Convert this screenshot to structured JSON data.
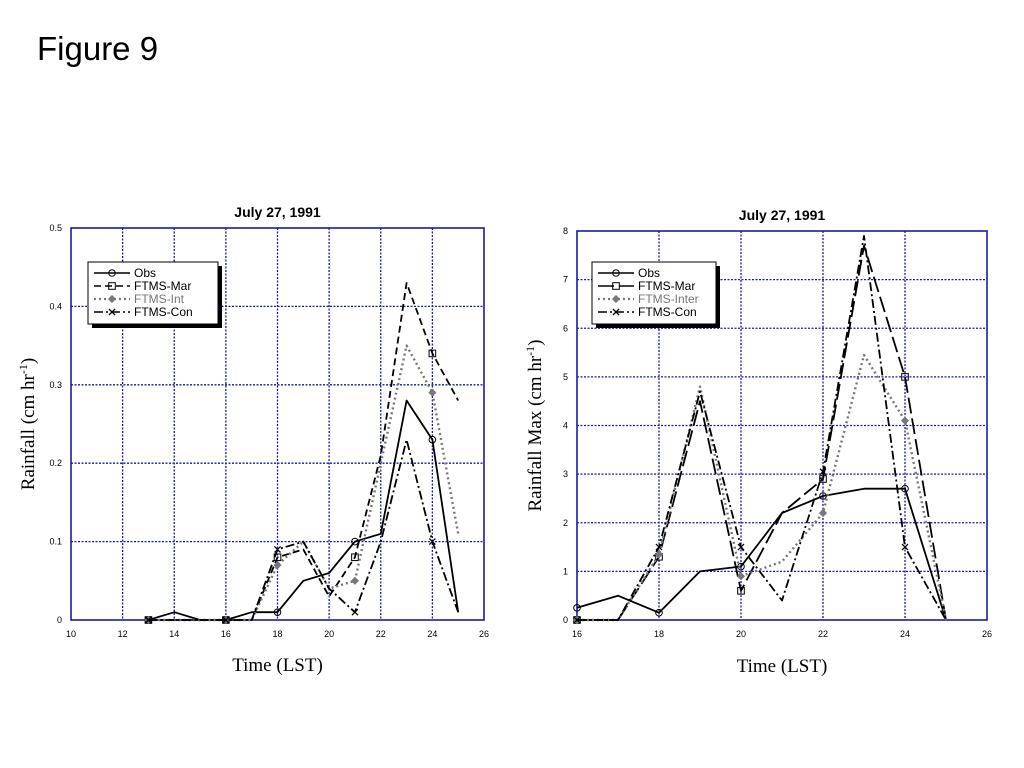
{
  "page": {
    "title": "Figure 9"
  },
  "chart_data": [
    {
      "type": "line",
      "title": "July 27, 1991",
      "xlabel": "Time (LST)",
      "ylabel": "Rainfall (cm hr",
      "ylabel_sup": "-1",
      "ylabel_end": ")",
      "xlim": [
        10,
        26
      ],
      "ylim": [
        0,
        0.5
      ],
      "xticks": [
        10,
        12,
        14,
        16,
        18,
        20,
        22,
        24,
        26
      ],
      "yticks": [
        0,
        0.1,
        0.2,
        0.3,
        0.4,
        0.5
      ],
      "grid": true,
      "legend_position": "top-left",
      "series": [
        {
          "name": "Obs",
          "color": "#000000",
          "style": "solid",
          "marker": "circle",
          "x": [
            13,
            14,
            15,
            16,
            17,
            18,
            19,
            20,
            21,
            22,
            23,
            24,
            25
          ],
          "y": [
            0,
            0.01,
            0,
            0,
            0.01,
            0.01,
            0.05,
            0.06,
            0.1,
            0.11,
            0.28,
            0.23,
            0.01
          ],
          "marker_x": [
            13,
            16,
            18,
            21,
            24
          ]
        },
        {
          "name": "FTMS-Mar",
          "color": "#000000",
          "style": "dash",
          "marker": "square",
          "x": [
            13,
            16,
            17,
            18,
            19,
            20,
            21,
            22,
            23,
            24,
            25
          ],
          "y": [
            0,
            0,
            0,
            0.08,
            0.09,
            0.03,
            0.08,
            0.21,
            0.43,
            0.34,
            0.28
          ],
          "marker_x": [
            13,
            16,
            18,
            21,
            24
          ]
        },
        {
          "name": "FTMS-Int",
          "color": "#777777",
          "style": "dot",
          "marker": "diamond",
          "x": [
            13,
            16,
            17,
            18,
            19,
            20,
            21,
            22,
            23,
            24,
            25
          ],
          "y": [
            0,
            0,
            0,
            0.07,
            0.1,
            0.04,
            0.05,
            0.2,
            0.35,
            0.29,
            0.11
          ],
          "marker_x": [
            13,
            16,
            18,
            21,
            24
          ]
        },
        {
          "name": "FTMS-Con",
          "color": "#000000",
          "style": "dashdot",
          "marker": "x",
          "x": [
            13,
            16,
            17,
            18,
            19,
            20,
            21,
            22,
            23,
            24,
            25
          ],
          "y": [
            0,
            0,
            0,
            0.09,
            0.1,
            0.04,
            0.01,
            0.1,
            0.23,
            0.1,
            0.01
          ],
          "marker_x": [
            13,
            16,
            18,
            21,
            24
          ]
        }
      ]
    },
    {
      "type": "line",
      "title": "July 27, 1991",
      "xlabel": "Time (LST)",
      "ylabel": "Rainfall Max (cm hr",
      "ylabel_sup": "-1",
      "ylabel_end": ")",
      "xlim": [
        16,
        26
      ],
      "ylim": [
        0,
        8
      ],
      "xticks": [
        16,
        18,
        20,
        22,
        24,
        26
      ],
      "yticks": [
        0,
        1,
        2,
        3,
        4,
        5,
        6,
        7,
        8
      ],
      "grid": true,
      "legend_position": "top-left",
      "series": [
        {
          "name": "Obs",
          "color": "#000000",
          "style": "solid",
          "marker": "circle",
          "x": [
            16,
            17,
            18,
            19,
            20,
            21,
            22,
            23,
            24,
            25
          ],
          "y": [
            0.25,
            0.5,
            0.15,
            1.0,
            1.1,
            2.2,
            2.55,
            2.7,
            2.7,
            0
          ],
          "marker_x": [
            16,
            18,
            20,
            22,
            24
          ]
        },
        {
          "name": "FTMS-Mar",
          "color": "#000000",
          "style": "longdash",
          "marker": "square",
          "x": [
            16,
            17,
            18,
            19,
            20,
            21,
            22,
            23,
            24,
            25
          ],
          "y": [
            0,
            0,
            1.3,
            4.5,
            0.6,
            2.2,
            2.9,
            7.7,
            5.0,
            0
          ],
          "marker_x": [
            16,
            18,
            20,
            22,
            24
          ]
        },
        {
          "name": "FTMS-Inter",
          "color": "#777777",
          "style": "dot",
          "marker": "diamond",
          "x": [
            16,
            17,
            18,
            19,
            20,
            21,
            22,
            23,
            24,
            25
          ],
          "y": [
            0,
            0,
            1.35,
            4.8,
            0.9,
            1.2,
            2.2,
            5.45,
            4.1,
            0
          ],
          "marker_x": [
            16,
            18,
            20,
            22,
            24
          ]
        },
        {
          "name": "FTMS-Con",
          "color": "#000000",
          "style": "dashdot",
          "marker": "x",
          "x": [
            16,
            17,
            18,
            19,
            20,
            21,
            22,
            23,
            24,
            25
          ],
          "y": [
            0,
            0,
            1.5,
            4.7,
            1.5,
            0.4,
            3.05,
            7.9,
            1.5,
            0
          ],
          "marker_x": [
            16,
            18,
            20,
            22,
            24
          ]
        }
      ]
    }
  ]
}
